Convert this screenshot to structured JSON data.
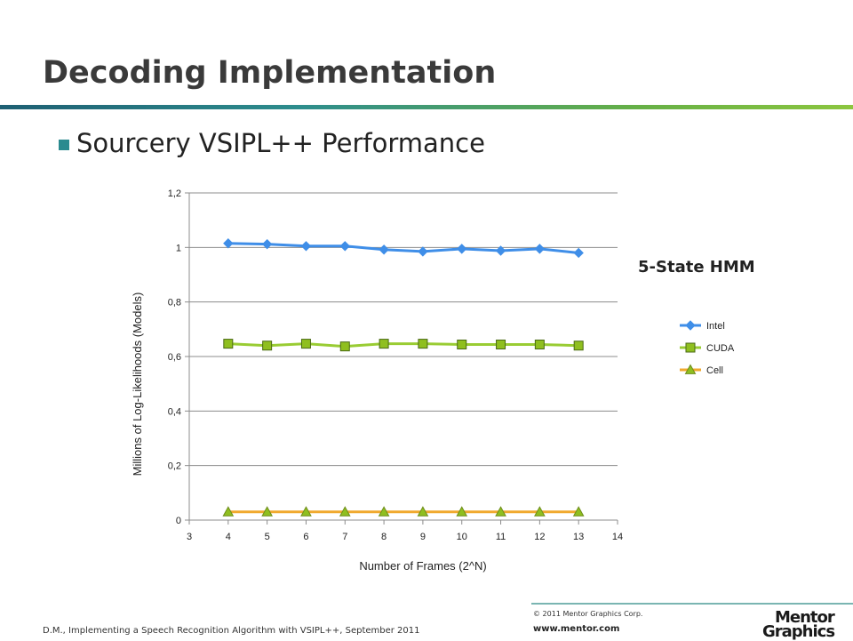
{
  "slide": {
    "title": "Decoding Implementation",
    "bullet": "Sourcery VSIPL++ Performance",
    "annotation": "5-State HMM",
    "citation": "D.M., Implementing a Speech Recognition Algorithm with VSIPL++, September 2011",
    "copyright": "© 2011 Mentor Graphics Corp.",
    "website": "www.mentor.com",
    "logo_text": "Mentor Graphics"
  },
  "colors": {
    "title_rule_start": "#1e5f73",
    "title_rule_end": "#8cc63f",
    "bullet": "#2a8a8f",
    "intel": "#3f8ee8",
    "cuda_line": "#99cc33",
    "cuda_marker": "#8fbf1f",
    "cell_line": "#f0a92e",
    "cell_marker": "#8fbf1f",
    "grid": "#8c8c8c"
  },
  "chart_data": {
    "type": "line",
    "xlabel": "Number of Frames (2^N)",
    "ylabel": "Millions of Log-Likelihoods (Models)",
    "xlim": [
      3,
      14
    ],
    "ylim": [
      0,
      1.2
    ],
    "x_ticks": [
      "3",
      "4",
      "5",
      "6",
      "7",
      "8",
      "9",
      "10",
      "11",
      "12",
      "13",
      "14"
    ],
    "y_ticks": [
      "0",
      "0,2",
      "0,4",
      "0,6",
      "0,8",
      "1",
      "1,2"
    ],
    "grid": "horizontal",
    "legend_position": "right",
    "x": [
      4,
      5,
      6,
      7,
      8,
      9,
      10,
      11,
      12,
      13
    ],
    "series": [
      {
        "name": "Intel",
        "marker": "diamond",
        "values": [
          1.015,
          1.012,
          1.005,
          1.005,
          0.992,
          0.985,
          0.995,
          0.988,
          0.995,
          0.98
        ]
      },
      {
        "name": "CUDA",
        "marker": "square",
        "values": [
          0.647,
          0.64,
          0.647,
          0.637,
          0.647,
          0.647,
          0.644,
          0.644,
          0.644,
          0.64
        ]
      },
      {
        "name": "Cell",
        "marker": "triangle",
        "values": [
          0.03,
          0.03,
          0.03,
          0.03,
          0.03,
          0.03,
          0.03,
          0.03,
          0.03,
          0.03
        ]
      }
    ]
  }
}
